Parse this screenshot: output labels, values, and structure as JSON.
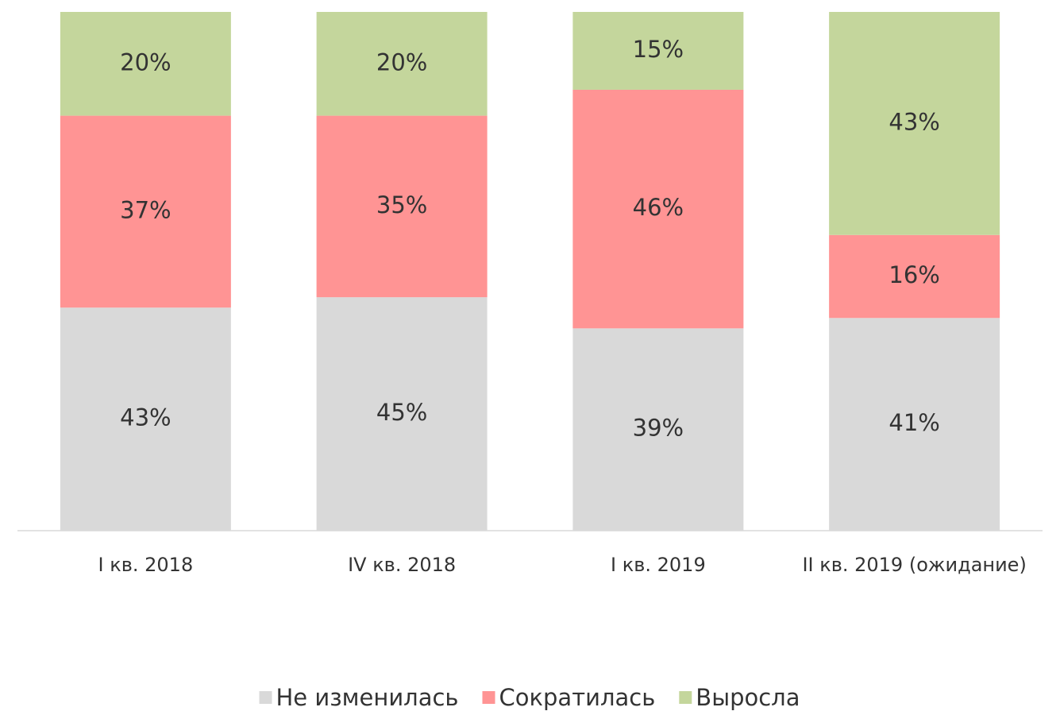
{
  "chart_data": {
    "type": "stacked_bar",
    "categories": [
      "I кв. 2018",
      "IV кв. 2018",
      "I кв. 2019",
      "II кв. 2019 (ожидание)"
    ],
    "series": [
      {
        "name": "Не изменилась",
        "color": "#d9d9d9",
        "values": [
          43,
          45,
          39,
          41
        ],
        "value_labels": [
          "43%",
          "45%",
          "39%",
          "41%"
        ]
      },
      {
        "name": "Сократилась",
        "color": "#ff9494",
        "values": [
          37,
          35,
          46,
          16
        ],
        "value_labels": [
          "37%",
          "35%",
          "46%",
          "16%"
        ]
      },
      {
        "name": "Выросла",
        "color": "#c4d69c",
        "values": [
          20,
          20,
          15,
          43
        ],
        "value_labels": [
          "20%",
          "20%",
          "15%",
          "43%"
        ]
      }
    ],
    "legend": "bottom"
  }
}
